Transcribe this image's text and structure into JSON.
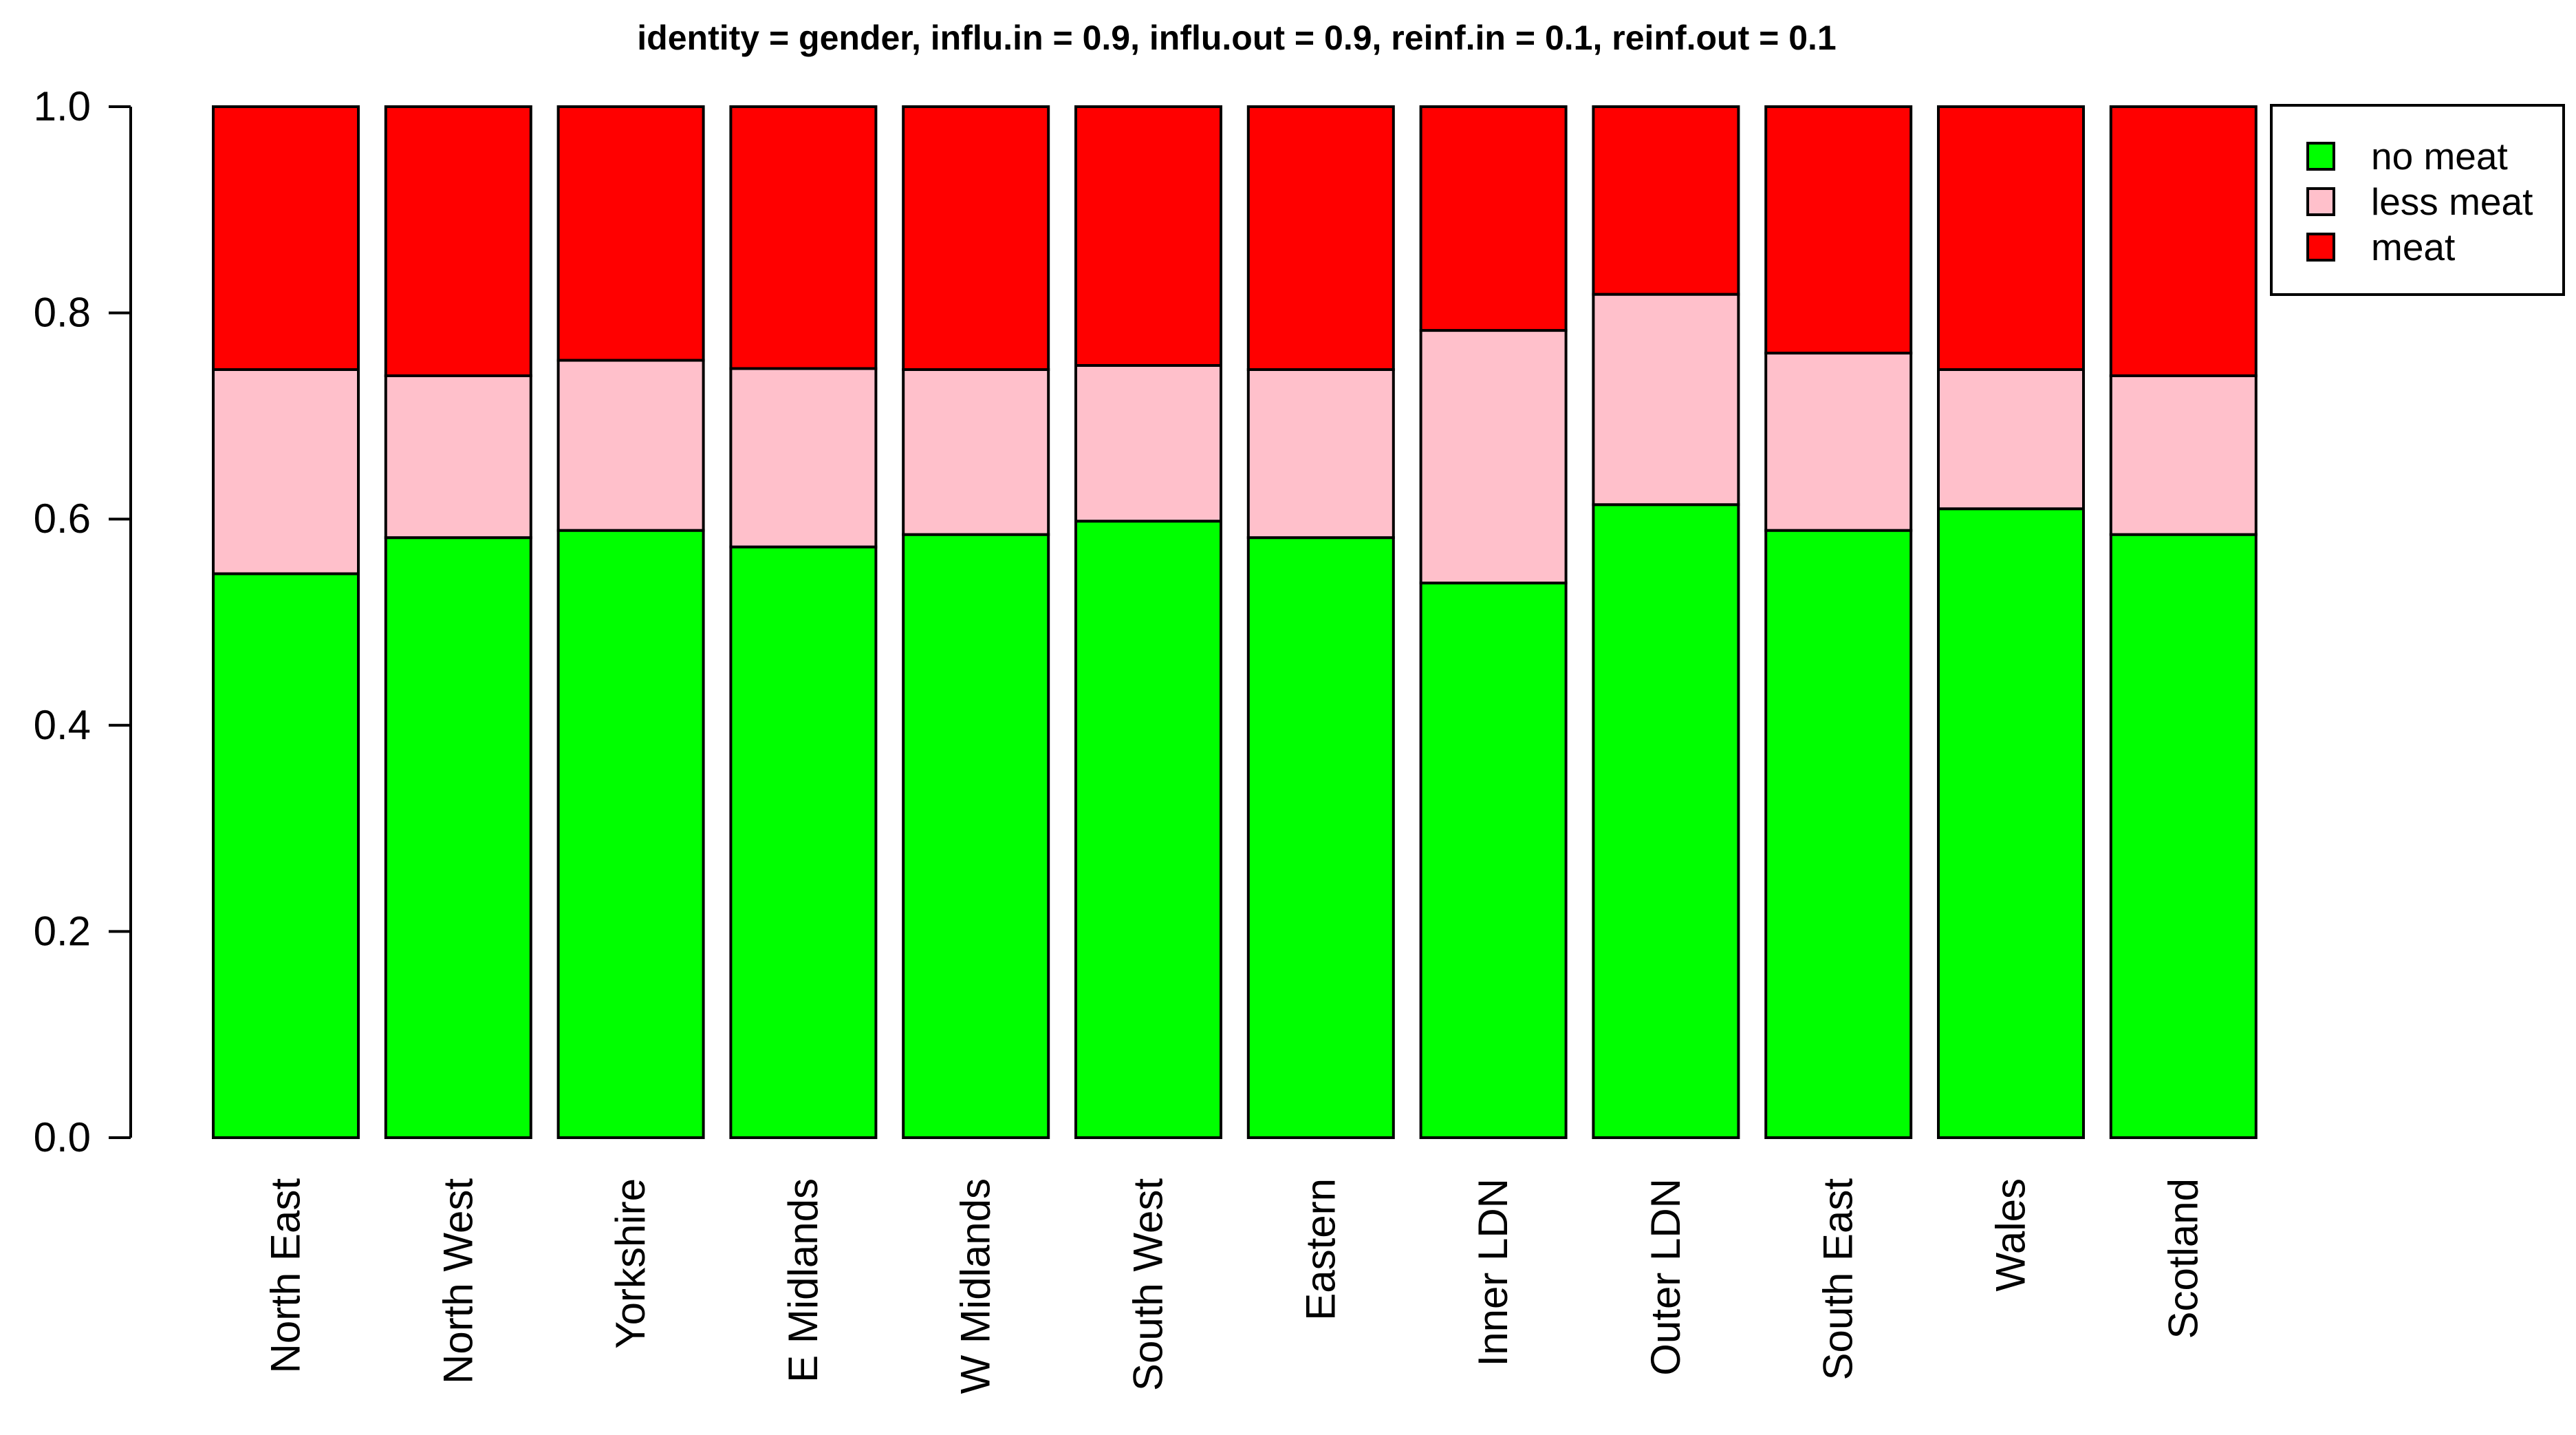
{
  "chart_data": {
    "type": "bar",
    "stacked": true,
    "title": "identity = gender, influ.in = 0.9, influ.out = 0.9, reinf.in = 0.1, reinf.out = 0.1",
    "xlabel": "",
    "ylabel": "",
    "ylim": [
      0,
      1
    ],
    "yticks": [
      "0.0",
      "0.2",
      "0.4",
      "0.6",
      "0.8",
      "1.0"
    ],
    "grid": false,
    "legend_position": "top-right",
    "categories": [
      "North East",
      "North West",
      "Yorkshire",
      "E Midlands",
      "W Midlands",
      "South West",
      "Eastern",
      "Inner LDN",
      "Outer LDN",
      "South East",
      "Wales",
      "Scotland"
    ],
    "series": [
      {
        "name": "no meat",
        "color": "#00ff00",
        "values": [
          0.547,
          0.582,
          0.589,
          0.573,
          0.585,
          0.598,
          0.582,
          0.538,
          0.614,
          0.589,
          0.61,
          0.585
        ]
      },
      {
        "name": "less meat",
        "color": "#ffc0cb",
        "values": [
          0.198,
          0.157,
          0.165,
          0.173,
          0.16,
          0.151,
          0.163,
          0.245,
          0.204,
          0.172,
          0.135,
          0.154
        ]
      },
      {
        "name": "meat",
        "color": "#ff0000",
        "values": [
          0.255,
          0.261,
          0.246,
          0.254,
          0.255,
          0.251,
          0.255,
          0.217,
          0.182,
          0.239,
          0.255,
          0.261
        ]
      }
    ]
  }
}
